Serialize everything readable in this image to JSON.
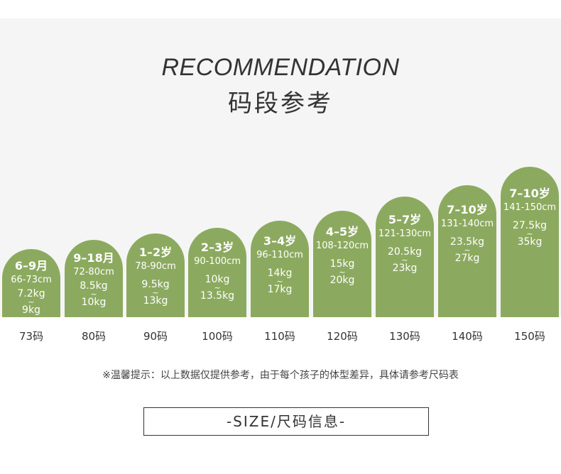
{
  "header": {
    "title_en": "RECOMMENDATION",
    "title_cn": "码段参考"
  },
  "colors": {
    "bar": "#8caa5f",
    "background_panel": "#f5f5f5",
    "text": "#333333"
  },
  "sizes": [
    {
      "age": "6–9月",
      "height": "66-73cm",
      "weight_min": "7.2kg",
      "weight_max": "9kg",
      "size": "73码"
    },
    {
      "age": "9–18月",
      "height": "72-80cm",
      "weight_min": "8.5kg",
      "weight_max": "10kg",
      "size": "80码"
    },
    {
      "age": "1–2岁",
      "height": "78-90cm",
      "weight_min": "9.5kg",
      "weight_max": "13kg",
      "size": "90码"
    },
    {
      "age": "2–3岁",
      "height": "90-100cm",
      "weight_min": "10kg",
      "weight_max": "13.5kg",
      "size": "100码"
    },
    {
      "age": "3–4岁",
      "height": "96-110cm",
      "weight_min": "14kg",
      "weight_max": "17kg",
      "size": "110码"
    },
    {
      "age": "4–5岁",
      "height": "108-120cm",
      "weight_min": "15kg",
      "weight_max": "20kg",
      "size": "120码"
    },
    {
      "age": "5–7岁",
      "height": "121-130cm",
      "weight_min": "20.5kg",
      "weight_max": "23kg",
      "size": "130码"
    },
    {
      "age": "7–10岁",
      "height": "131-140cm",
      "weight_min": "23.5kg",
      "weight_max": "27kg",
      "size": "140码"
    },
    {
      "age": "7–10岁",
      "height": "141-150cm",
      "weight_min": "27.5kg",
      "weight_max": "35kg",
      "size": "150码"
    }
  ],
  "tilde": "~",
  "note": "※温馨提示：以上数据仅提供参考，由于每个孩子的体型差异，具体请参考尺码表",
  "footer": {
    "label": "-SIZE/尺码信息-"
  }
}
